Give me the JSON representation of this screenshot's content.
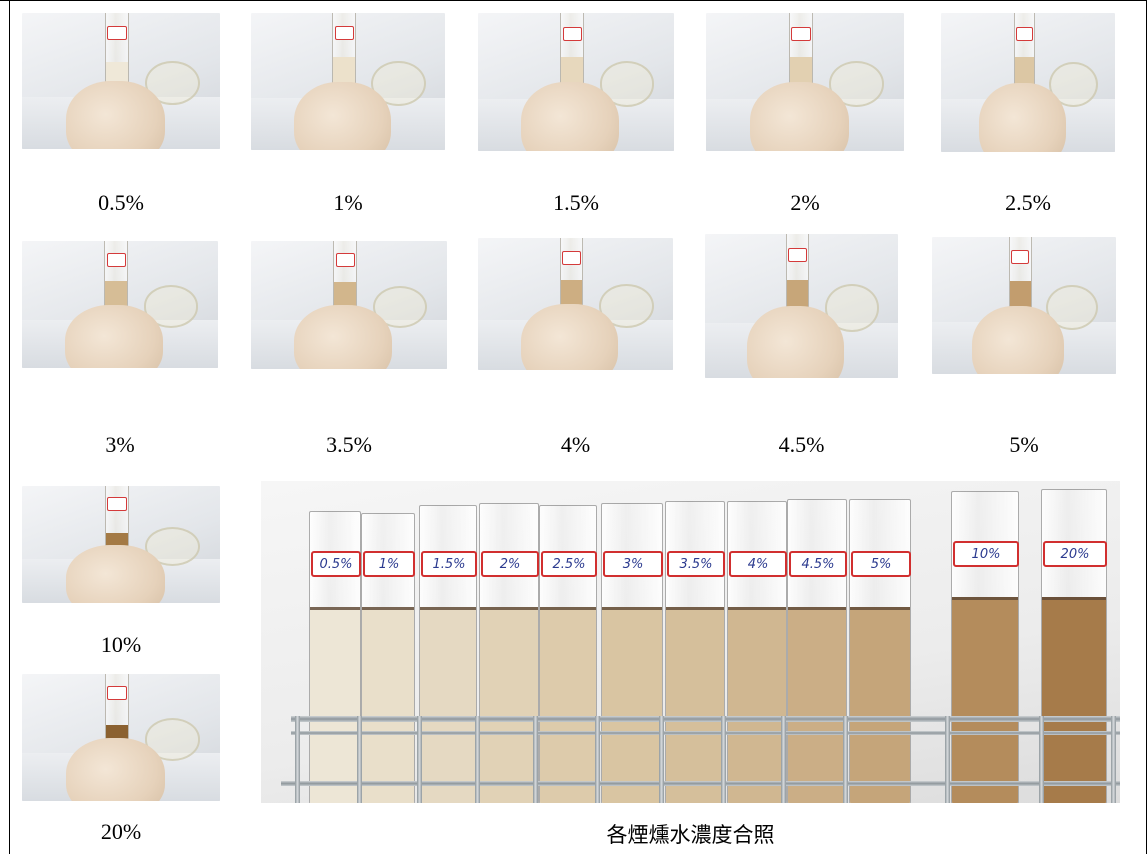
{
  "grid_row1": [
    {
      "caption": "0.5%",
      "liquid": "#efe8d8",
      "level": 0.55
    },
    {
      "caption": "1%",
      "liquid": "#ece1cb",
      "level": 0.6
    },
    {
      "caption": "1.5%",
      "liquid": "#e7d8bd",
      "level": 0.6
    },
    {
      "caption": "2%",
      "liquid": "#e2d0b1",
      "level": 0.6
    },
    {
      "caption": "2.5%",
      "liquid": "#dcc7a4",
      "level": 0.6
    }
  ],
  "grid_row2": [
    {
      "caption": "3%",
      "liquid": "#d6bd96",
      "level": 0.6
    },
    {
      "caption": "3.5%",
      "liquid": "#d2b68c",
      "level": 0.6
    },
    {
      "caption": "4%",
      "liquid": "#cdae82",
      "level": 0.6
    },
    {
      "caption": "4.5%",
      "liquid": "#c7a679",
      "level": 0.6
    },
    {
      "caption": "5%",
      "liquid": "#c29d6e",
      "level": 0.6
    }
  ],
  "left_column": [
    {
      "caption": "10%",
      "liquid": "#a47a45",
      "level": 0.5
    },
    {
      "caption": "20%",
      "liquid": "#8b6130",
      "level": 0.5
    }
  ],
  "comparison": {
    "caption": "各煙燻水濃度合照",
    "tubes": [
      {
        "label": "0.5%",
        "liquid": "#ede6d6"
      },
      {
        "label": "1%",
        "liquid": "#e9dfca"
      },
      {
        "label": "1.5%",
        "liquid": "#e5d9c2"
      },
      {
        "label": "2%",
        "liquid": "#e1d2b6"
      },
      {
        "label": "2.5%",
        "liquid": "#ddcbab"
      },
      {
        "label": "3%",
        "liquid": "#d9c5a2"
      },
      {
        "label": "3.5%",
        "liquid": "#d5bf9b"
      },
      {
        "label": "4%",
        "liquid": "#d0b791"
      },
      {
        "label": "4.5%",
        "liquid": "#cbae86"
      },
      {
        "label": "5%",
        "liquid": "#c5a57a"
      },
      {
        "label": "10%",
        "liquid": "#b48c5c"
      },
      {
        "label": "20%",
        "liquid": "#a67b4a"
      }
    ]
  }
}
